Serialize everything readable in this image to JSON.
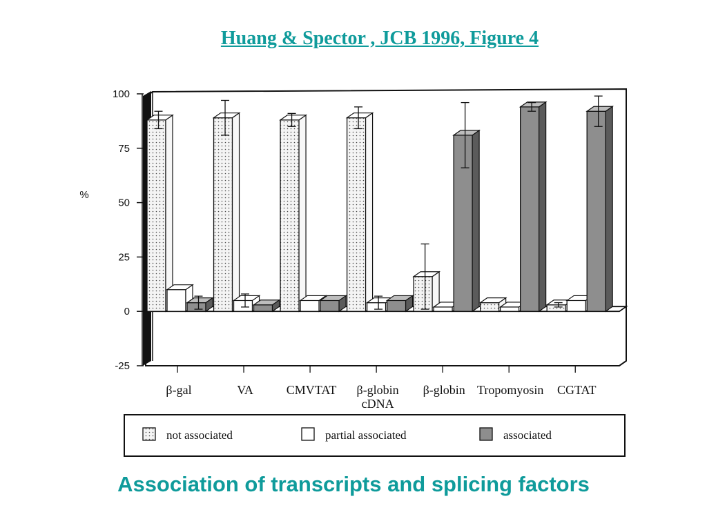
{
  "slide": {
    "title": "Huang & Spector , JCB 1996, Figure 4",
    "subtitle": "Association of transcripts and splicing factors"
  },
  "colors": {
    "title": "#0f9b9b",
    "not_associated_fill": "#ececec",
    "partial_fill": "#ffffff",
    "associated_fill": "#8e8e8e",
    "line": "#111111"
  },
  "chart_data": {
    "type": "bar",
    "title": "",
    "xlabel": "",
    "ylabel": "%",
    "ylim": [
      -25,
      100
    ],
    "yticks": [
      100,
      75,
      50,
      25,
      0,
      -25
    ],
    "grid": false,
    "legend_position": "bottom",
    "categories": [
      {
        "lines": [
          "β-gal"
        ]
      },
      {
        "lines": [
          "VA"
        ]
      },
      {
        "lines": [
          "CMVTAT"
        ]
      },
      {
        "lines": [
          "β-globin",
          "cDNA"
        ]
      },
      {
        "lines": [
          "β-globin"
        ]
      },
      {
        "lines": [
          "Tropomyosin"
        ]
      },
      {
        "lines": [
          "CGTAT"
        ]
      }
    ],
    "series": [
      {
        "name": "not associated",
        "pattern": "dots",
        "values": [
          88,
          89,
          88,
          89,
          16,
          4,
          3
        ],
        "errors": [
          4,
          8,
          3,
          5,
          15,
          0,
          1
        ]
      },
      {
        "name": "partial associated",
        "pattern": "plain",
        "values": [
          10,
          5,
          5,
          4,
          2,
          2,
          5
        ],
        "errors": [
          0,
          3,
          0,
          3,
          0,
          0,
          0
        ]
      },
      {
        "name": "associated",
        "pattern": "shaded",
        "values": [
          4,
          3,
          5,
          5,
          81,
          94,
          92
        ],
        "errors": [
          3,
          0,
          0,
          0,
          15,
          2,
          7
        ]
      }
    ]
  }
}
